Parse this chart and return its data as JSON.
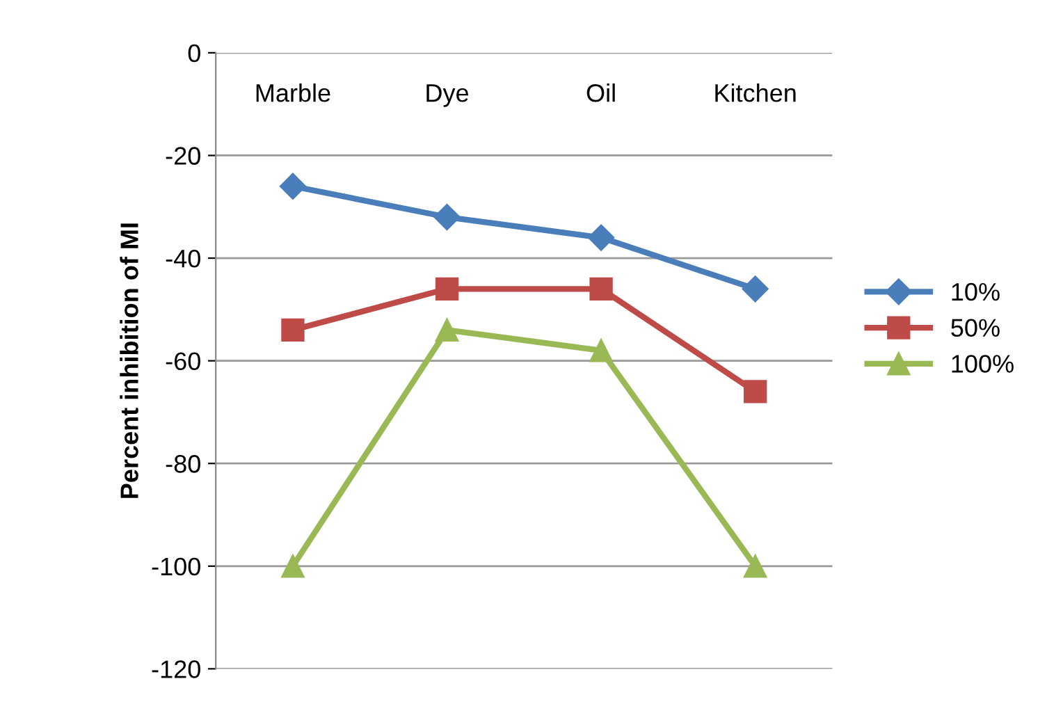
{
  "chart_data": {
    "type": "line",
    "ylabel": "Percent inhibition of MI",
    "categories": [
      "Marble",
      "Dye",
      "Oil",
      "Kitchen"
    ],
    "series": [
      {
        "name": "10%",
        "color": "#4a7ebb",
        "marker": "diamond",
        "values": [
          -26,
          -32,
          -36,
          -46
        ]
      },
      {
        "name": "50%",
        "color": "#be4b48",
        "marker": "square",
        "values": [
          -54,
          -46,
          -46,
          -66
        ]
      },
      {
        "name": "100%",
        "color": "#98b954",
        "marker": "triangle",
        "values": [
          -100,
          -54,
          -58,
          -100
        ]
      }
    ],
    "ylim": [
      -120,
      0
    ],
    "yticks": [
      -120,
      -100,
      -80,
      -60,
      -40,
      -20,
      0
    ],
    "grid": "y",
    "legend": "right"
  }
}
